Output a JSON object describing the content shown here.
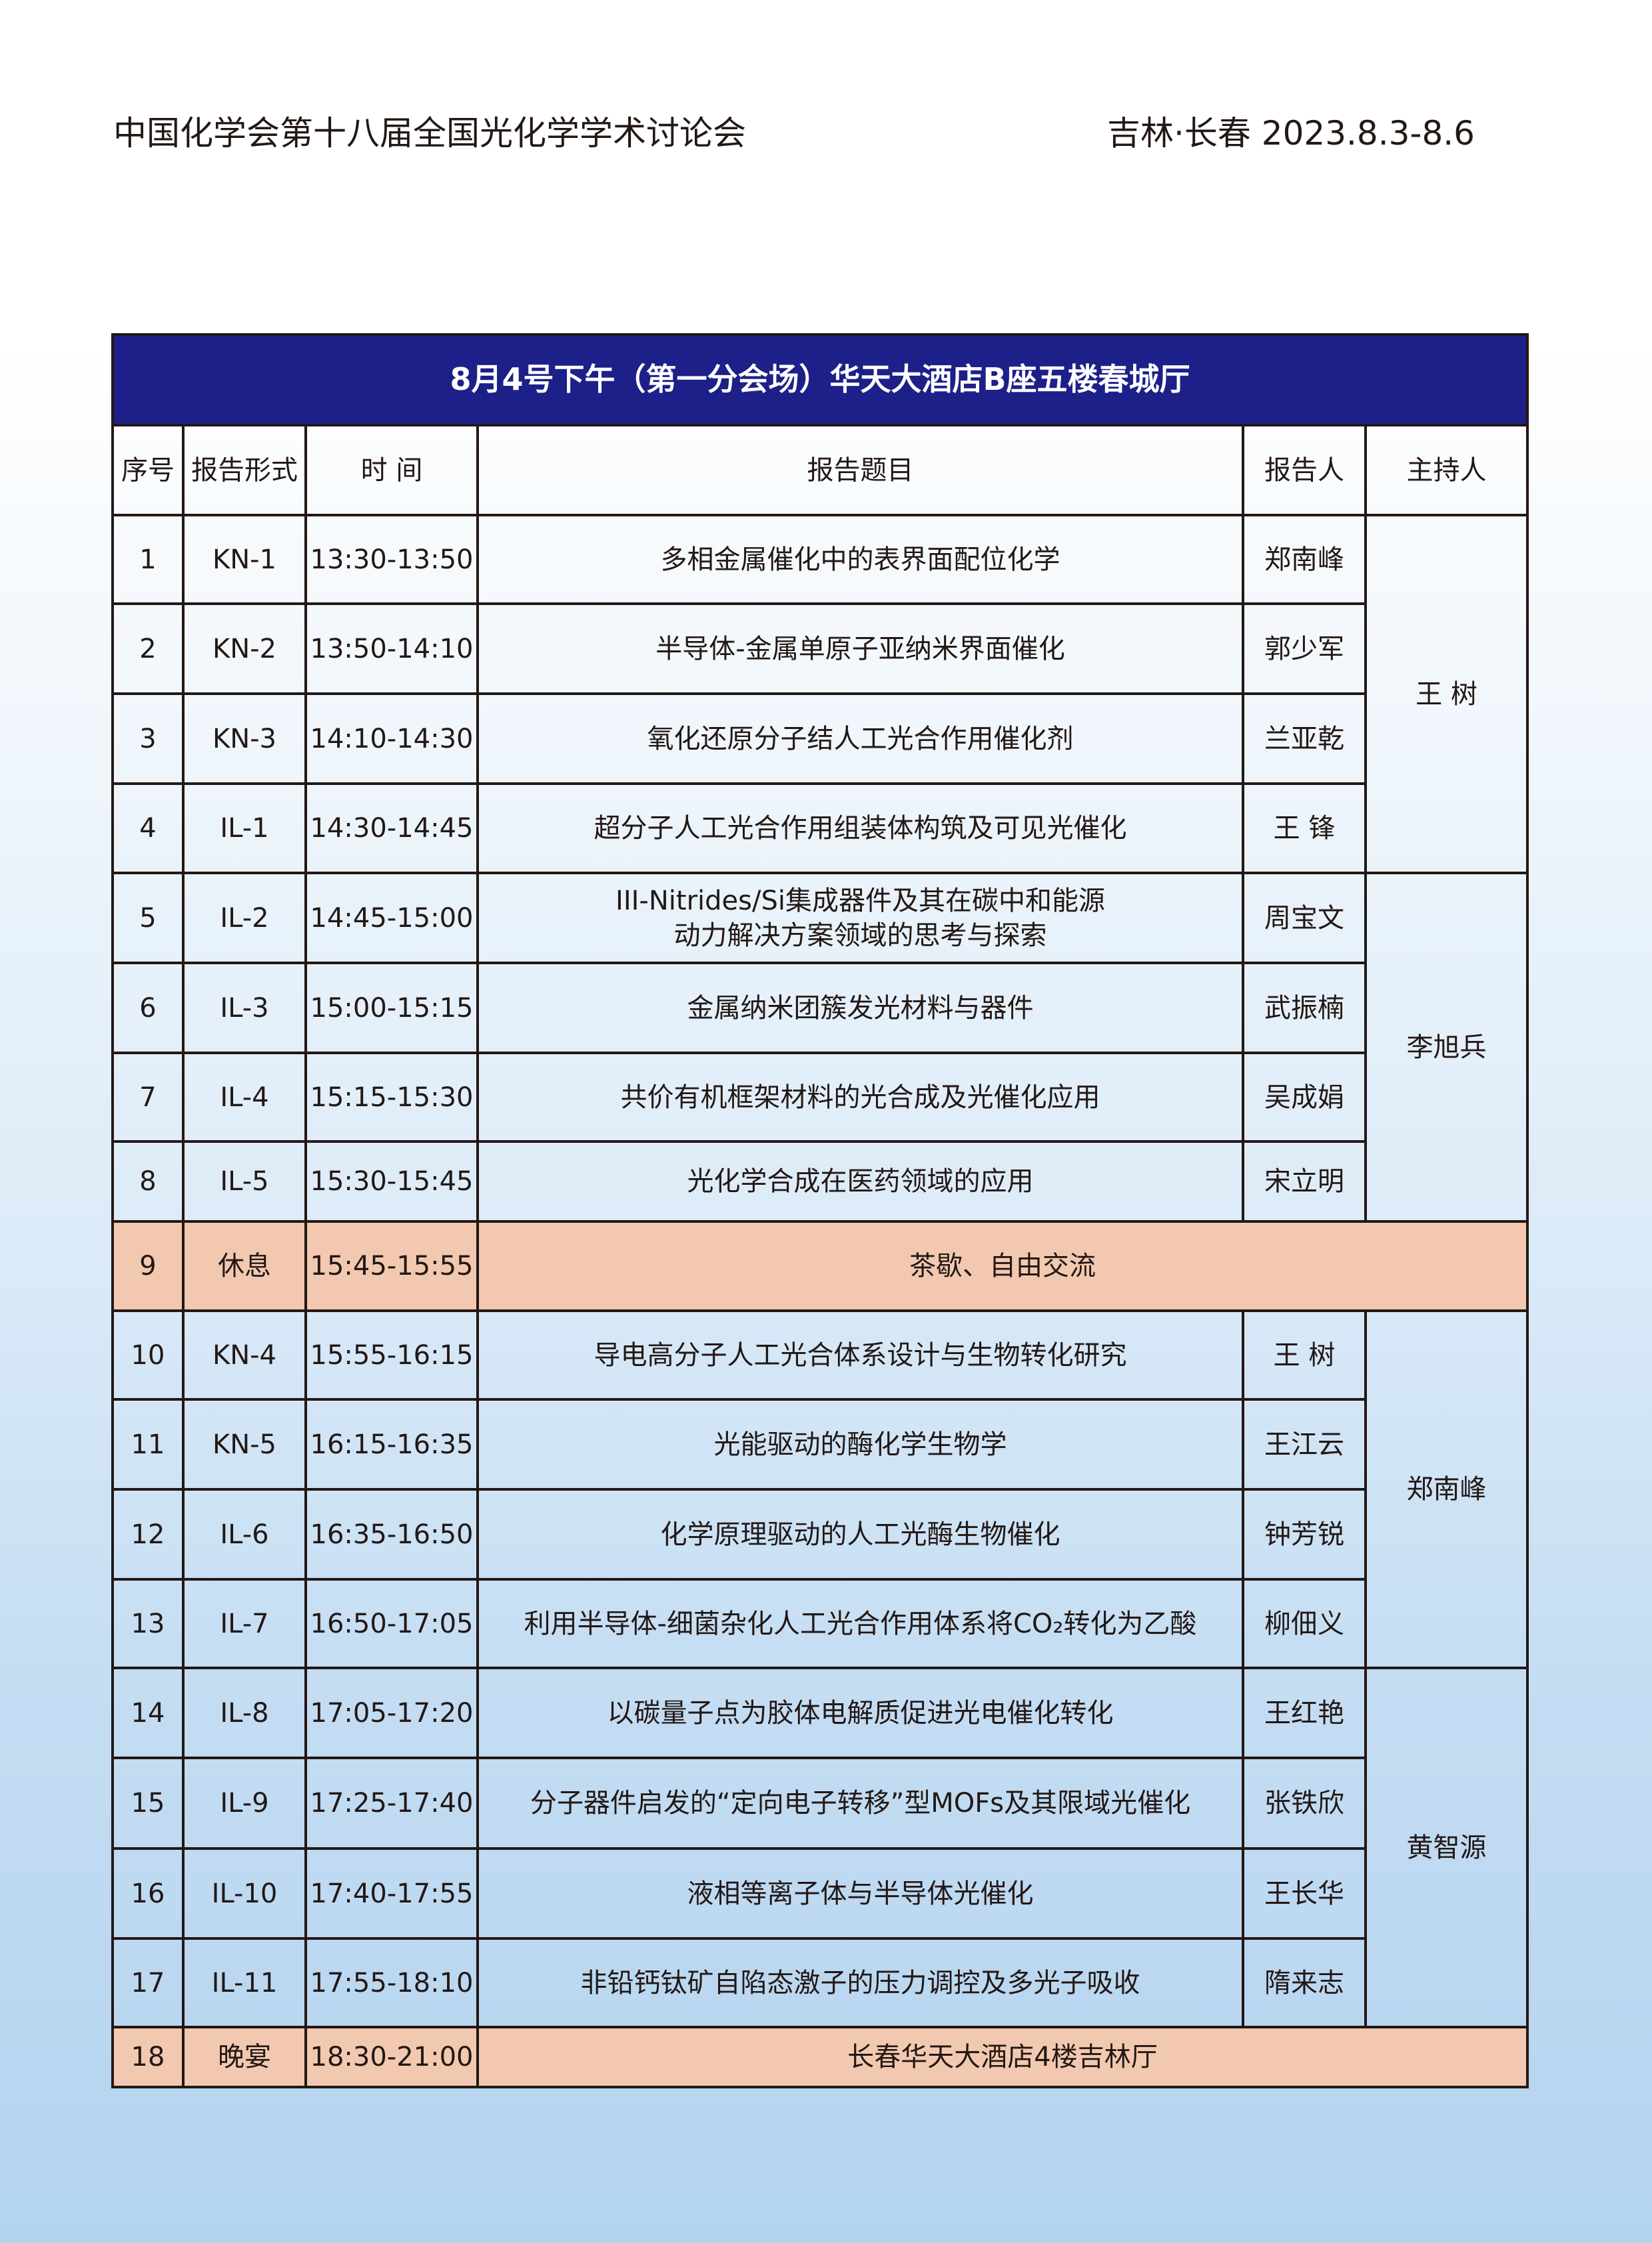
{
  "header": {
    "conference": "中国化学会第十八届全国光化学学术讨论会",
    "location_date": "吉林·长春 2023.8.3-8.6"
  },
  "table": {
    "title": "8月4号下午（第一分会场）华天大酒店B座五楼春城厅",
    "columns": [
      "序号",
      "报告形式",
      "时 间",
      "报告题目",
      "报告人",
      "主持人"
    ],
    "rows": [
      {
        "no": "1",
        "type": "KN-1",
        "time": "13:30-13:50",
        "topic": "多相金属催化中的表界面配位化学",
        "speaker": "郑南峰"
      },
      {
        "no": "2",
        "type": "KN-2",
        "time": "13:50-14:10",
        "topic": "半导体-金属单原子亚纳米界面催化",
        "speaker": "郭少军"
      },
      {
        "no": "3",
        "type": "KN-3",
        "time": "14:10-14:30",
        "topic": "氧化还原分子结人工光合作用催化剂",
        "speaker": "兰亚乾"
      },
      {
        "no": "4",
        "type": "IL-1",
        "time": "14:30-14:45",
        "topic": "超分子人工光合作用组装体构筑及可见光催化",
        "speaker": "王 锋"
      },
      {
        "no": "5",
        "type": "IL-2",
        "time": "14:45-15:00",
        "topic": "III-Nitrides/Si集成器件及其在碳中和能源动力解决方案领域的思考与探索",
        "speaker": "周宝文"
      },
      {
        "no": "6",
        "type": "IL-3",
        "time": "15:00-15:15",
        "topic": "金属纳米团簇发光材料与器件",
        "speaker": "武振楠"
      },
      {
        "no": "7",
        "type": "IL-4",
        "time": "15:15-15:30",
        "topic": "共价有机框架材料的光合成及光催化应用",
        "speaker": "吴成娟"
      },
      {
        "no": "8",
        "type": "IL-5",
        "time": "15:30-15:45",
        "topic": "光化学合成在医药领域的应用",
        "speaker": "宋立明"
      },
      {
        "no": "9",
        "type": "休息",
        "time": "15:45-15:55",
        "topic": "茶歇、自由交流"
      },
      {
        "no": "10",
        "type": "KN-4",
        "time": "15:55-16:15",
        "topic": "导电高分子人工光合体系设计与生物转化研究",
        "speaker": "王 树"
      },
      {
        "no": "11",
        "type": "KN-5",
        "time": "16:15-16:35",
        "topic": "光能驱动的酶化学生物学",
        "speaker": "王江云"
      },
      {
        "no": "12",
        "type": "IL-6",
        "time": "16:35-16:50",
        "topic": "化学原理驱动的人工光酶生物催化",
        "speaker": "钟芳锐"
      },
      {
        "no": "13",
        "type": "IL-7",
        "time": "16:50-17:05",
        "topic": "利用半导体-细菌杂化人工光合作用体系将CO₂转化为乙酸",
        "speaker": "柳佃义"
      },
      {
        "no": "14",
        "type": "IL-8",
        "time": "17:05-17:20",
        "topic": "以碳量子点为胶体电解质促进光电催化转化",
        "speaker": "王红艳"
      },
      {
        "no": "15",
        "type": "IL-9",
        "time": "17:25-17:40",
        "topic": "分子器件启发的“定向电子转移”型MOFs及其限域光催化",
        "speaker": "张铁欣"
      },
      {
        "no": "16",
        "type": "IL-10",
        "time": "17:40-17:55",
        "topic": "液相等离子体与半导体光催化",
        "speaker": "王长华"
      },
      {
        "no": "17",
        "type": "IL-11",
        "time": "17:55-18:10",
        "topic": "非铅钙钛矿自陷态激子的压力调控及多光子吸收",
        "speaker": "隋来志"
      },
      {
        "no": "18",
        "type": "晚宴",
        "time": "18:30-21:00",
        "topic": "长春华天大酒店4楼吉林厅"
      }
    ],
    "hosts": [
      {
        "name": "王 树",
        "rows": "1-4"
      },
      {
        "name": "李旭兵",
        "rows": "5-8"
      },
      {
        "name": "郑南峰",
        "rows": "10-13"
      },
      {
        "name": "黄智源",
        "rows": "14-17"
      }
    ],
    "colors": {
      "title_bg": "#1d2088",
      "break_bg": "#f2c9b0"
    }
  }
}
